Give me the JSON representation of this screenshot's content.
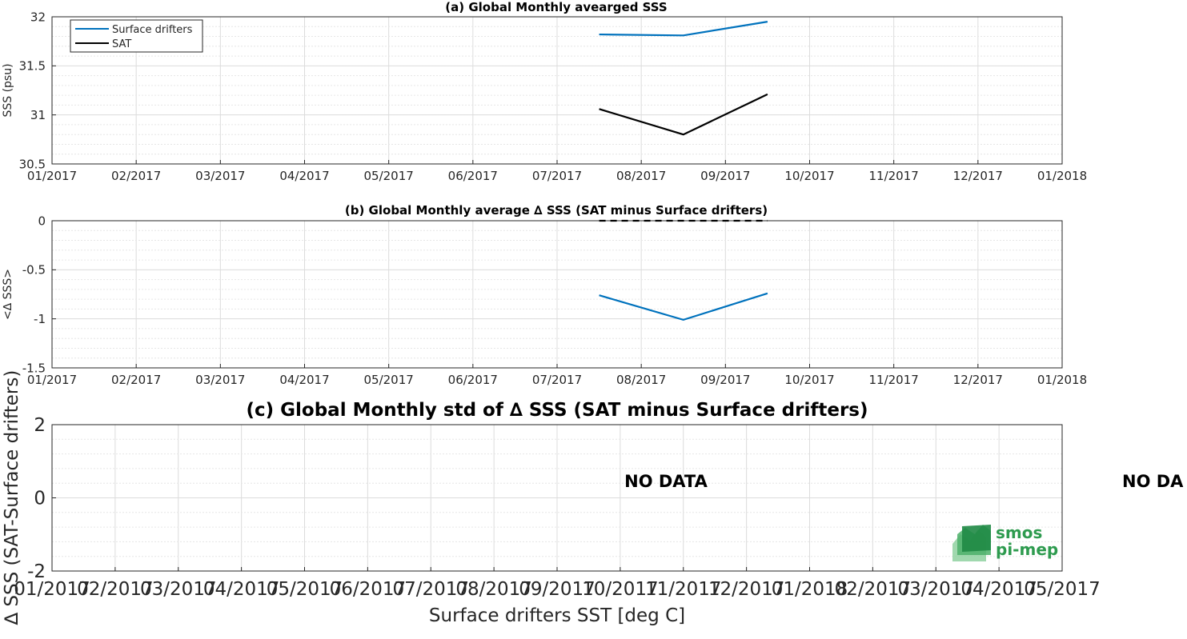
{
  "chart_data": [
    {
      "type": "line",
      "title": "(a) Global Monthly avearged SSS",
      "ylabel": "SSS (psu)",
      "xlabel": "",
      "ylim": [
        30.5,
        32
      ],
      "yticks": [
        "30.5",
        "31",
        "31.5",
        "32"
      ],
      "xticks": [
        "01/2017",
        "02/2017",
        "03/2017",
        "04/2017",
        "05/2017",
        "06/2017",
        "07/2017",
        "08/2017",
        "09/2017",
        "10/2017",
        "11/2017",
        "12/2017",
        "01/2018"
      ],
      "x": [
        6.5,
        7.5,
        8.5
      ],
      "series": [
        {
          "name": "Surface drifters",
          "color": "#0072bd",
          "values": [
            31.82,
            31.81,
            31.95
          ]
        },
        {
          "name": "SAT",
          "color": "#000000",
          "values": [
            31.06,
            30.8,
            31.21
          ]
        }
      ],
      "legend": "top-left",
      "grid": true
    },
    {
      "type": "line",
      "title": "(b) Global Monthly average ∆ SSS (SAT minus Surface drifters)",
      "ylabel": "<∆ SSS>",
      "xlabel": "",
      "ylim": [
        -1.5,
        0
      ],
      "yticks": [
        "-1.5",
        "-1",
        "-0.5",
        "0"
      ],
      "xticks": [
        "01/2017",
        "02/2017",
        "03/2017",
        "04/2017",
        "05/2017",
        "06/2017",
        "07/2017",
        "08/2017",
        "09/2017",
        "10/2017",
        "11/2017",
        "12/2017",
        "01/2018"
      ],
      "x": [
        6.5,
        7.5,
        8.5
      ],
      "series": [
        {
          "color": "#0072bd",
          "values": [
            -0.76,
            -1.01,
            -0.74
          ]
        },
        {
          "color": "#000000",
          "style": "dashed",
          "values": [
            0,
            0,
            0
          ]
        }
      ],
      "grid": true
    },
    {
      "type": "line",
      "title": "(c) Global Monthly std of ∆ SSS (SAT minus Surface drifters)",
      "ylabel": "∆ SSS (SAT-Surface drifters)",
      "xlabel": "Surface drifters SST [deg C]",
      "ylim": [
        -2,
        2
      ],
      "yticks": [
        "-2",
        "0",
        "2"
      ],
      "xticks": [
        "01/2017",
        "02/2017",
        "03/2017",
        "04/2017",
        "05/2017",
        "06/2017",
        "07/2017",
        "08/2017",
        "09/2017",
        "10/2017",
        "11/2017",
        "12/2017",
        "01/2018",
        "02/2017",
        "03/2017",
        "04/2017",
        "05/2017"
      ],
      "annotations": [
        "NO DATA",
        "NO DA"
      ],
      "grid": true
    }
  ],
  "logo": {
    "line1": "smos",
    "line2": "pi-mep",
    "color": "#2e9b4f"
  }
}
